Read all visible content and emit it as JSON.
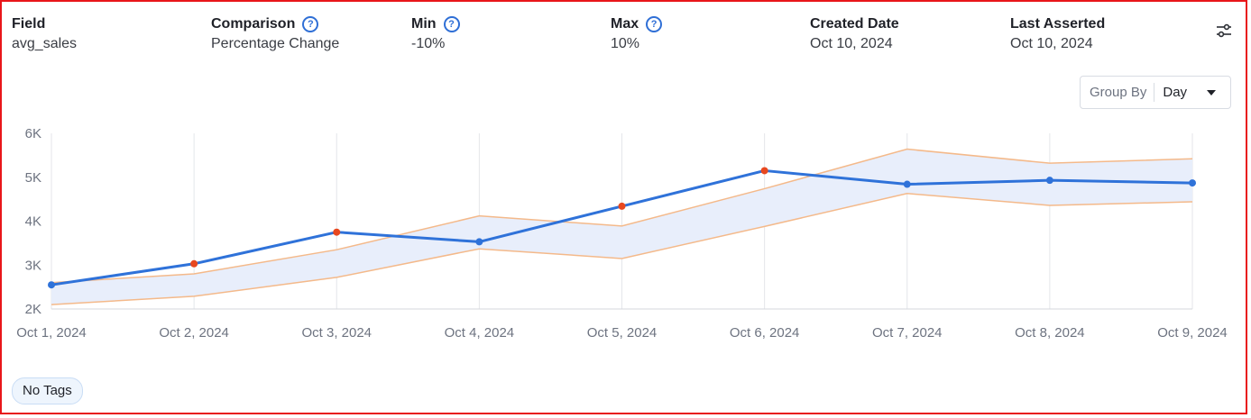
{
  "header": {
    "field": {
      "label": "Field",
      "value": "avg_sales"
    },
    "comparison": {
      "label": "Comparison",
      "value": "Percentage Change"
    },
    "min": {
      "label": "Min",
      "value": "-10%"
    },
    "max": {
      "label": "Max",
      "value": "10%"
    },
    "created": {
      "label": "Created Date",
      "value": "Oct 10, 2024"
    },
    "asserted": {
      "label": "Last Asserted",
      "value": "Oct 10, 2024"
    },
    "settings_icon": "sliders-icon",
    "help_icon": "question-circle-icon"
  },
  "group_by": {
    "label": "Group By",
    "value": "Day"
  },
  "tags": {
    "empty_label": "No Tags"
  },
  "colors": {
    "actual_line": "#2f72d9",
    "anomaly_point": "#e8481f",
    "band_fill": "#e8eefb",
    "band_edge": "#f4b98a",
    "frame_border": "#e8161a"
  },
  "chart_data": {
    "type": "line",
    "categories": [
      "Oct 1, 2024",
      "Oct 2, 2024",
      "Oct 3, 2024",
      "Oct 4, 2024",
      "Oct 5, 2024",
      "Oct 6, 2024",
      "Oct 7, 2024",
      "Oct 8, 2024",
      "Oct 9, 2024"
    ],
    "ylim": [
      2000,
      6000
    ],
    "yticks": [
      {
        "value": 2000,
        "label": "2K"
      },
      {
        "value": 3000,
        "label": "3K"
      },
      {
        "value": 4000,
        "label": "4K"
      },
      {
        "value": 5000,
        "label": "5K"
      },
      {
        "value": 6000,
        "label": "6K"
      }
    ],
    "series": [
      {
        "values": [
          2550,
          3030,
          3750,
          3530,
          4340,
          5150,
          4840,
          4930,
          4870
        ]
      },
      {
        "values": [
          2600,
          2800,
          3350,
          4120,
          3890,
          4740,
          5640,
          5320,
          5420
        ]
      },
      {
        "values": [
          2100,
          2290,
          2720,
          3370,
          3150,
          3880,
          4630,
          4360,
          4440
        ]
      }
    ],
    "anomalies": [
      false,
      true,
      true,
      false,
      true,
      true,
      false,
      false,
      false
    ],
    "grid": "vertical"
  }
}
